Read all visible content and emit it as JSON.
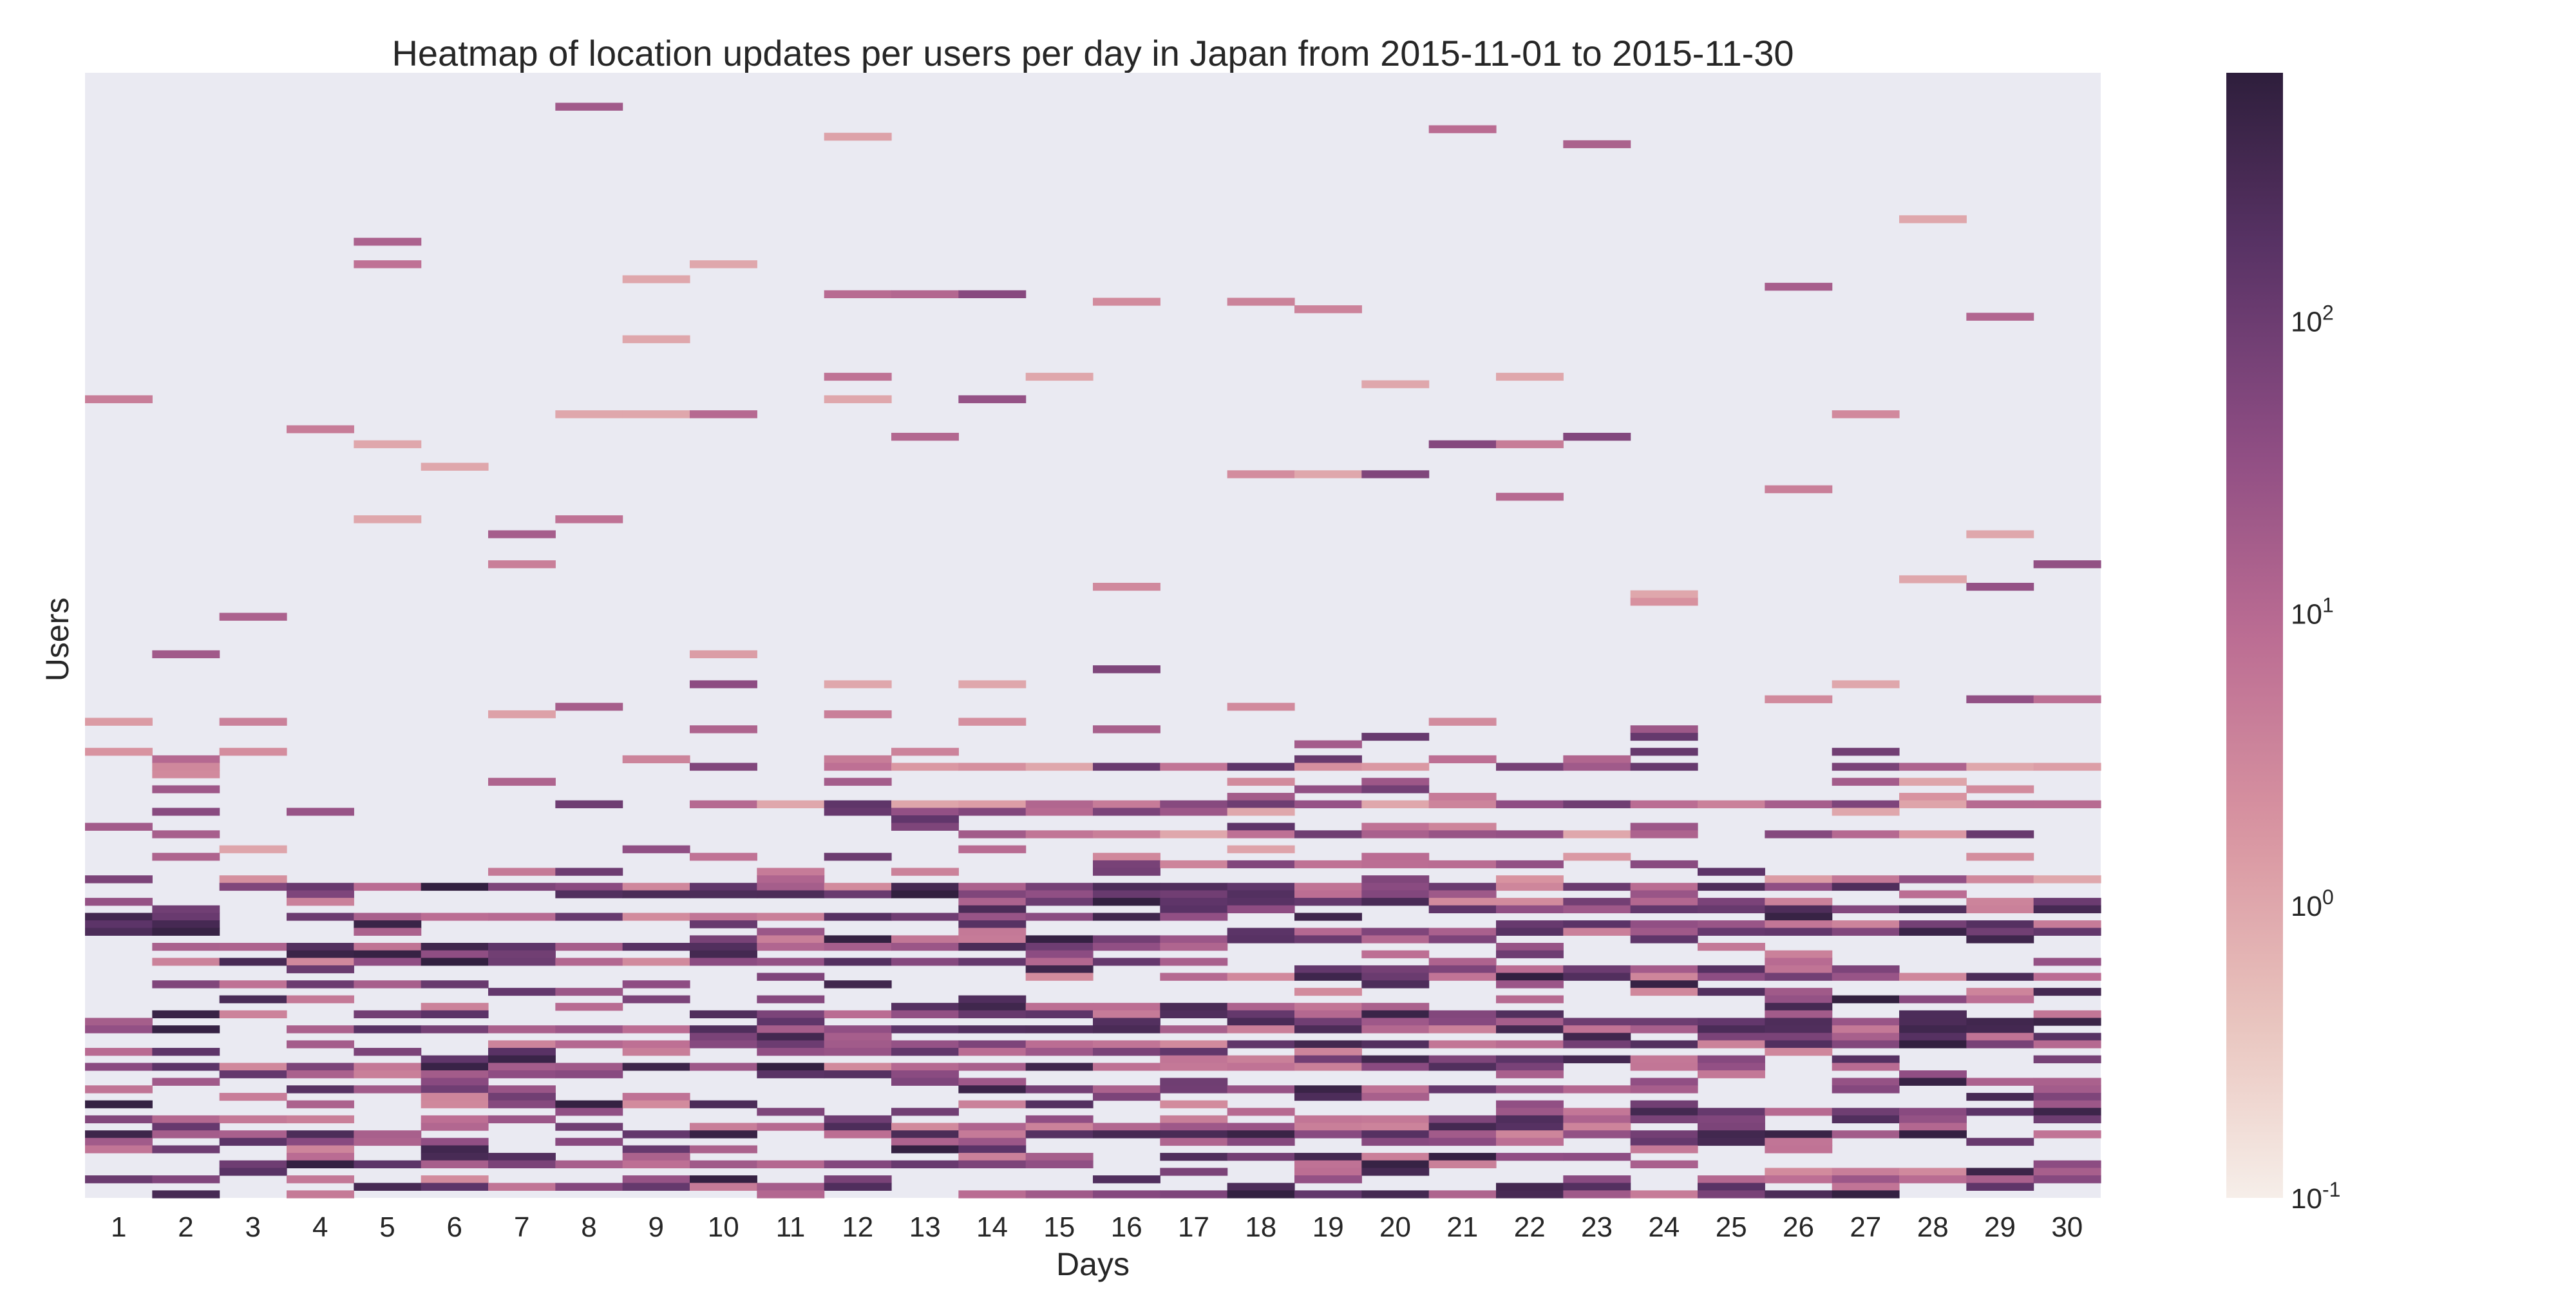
{
  "chart_data": {
    "type": "heatmap",
    "title": "Heatmap of location updates per users per day in Japan from 2015-11-01 to 2015-11-30",
    "xlabel": "Days",
    "ylabel": "Users",
    "x_categories": [
      "1",
      "2",
      "3",
      "4",
      "5",
      "6",
      "7",
      "8",
      "9",
      "10",
      "11",
      "12",
      "13",
      "14",
      "15",
      "16",
      "17",
      "18",
      "19",
      "20",
      "21",
      "22",
      "23",
      "24",
      "25",
      "26",
      "27",
      "28",
      "29",
      "30"
    ],
    "user_count": 150,
    "color_scale": {
      "type": "log",
      "min_exponent": -1,
      "max_exponent": 2.85,
      "ticks": [
        {
          "value": 0.1,
          "label": "10-1",
          "base": "10",
          "exp": "-1"
        },
        {
          "value": 1,
          "label": "100",
          "base": "10",
          "exp": "0"
        },
        {
          "value": 10,
          "label": "101",
          "base": "10",
          "exp": "1"
        },
        {
          "value": 100,
          "label": "102",
          "base": "10",
          "exp": "2"
        }
      ],
      "colors": [
        "#f6eee9",
        "#e8c1bb",
        "#d893a0",
        "#bb6d93",
        "#8e4d83",
        "#5c3468",
        "#2e1e3c"
      ]
    },
    "background_color": "#eaeaf2",
    "generation": {
      "seed": 20151101
    }
  }
}
